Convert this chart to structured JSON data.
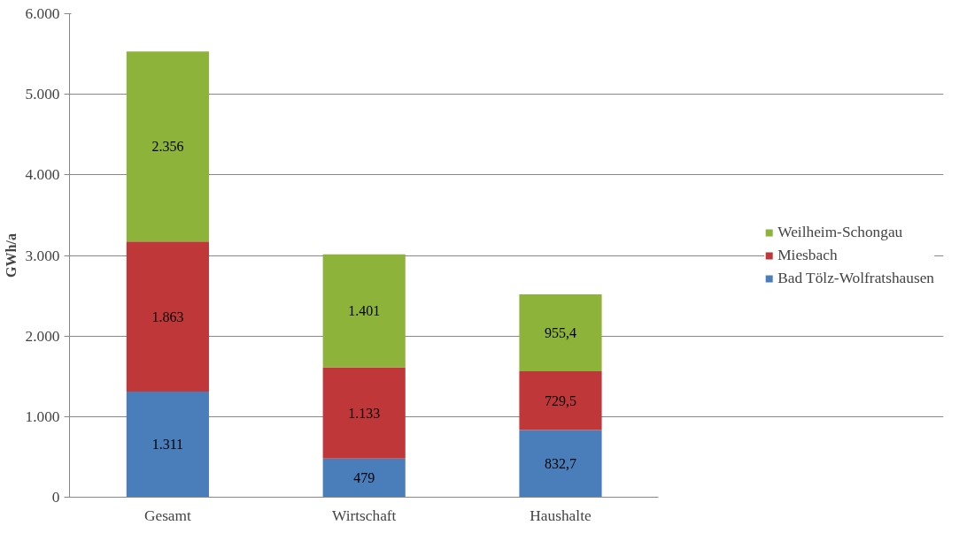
{
  "chart_data": {
    "type": "bar",
    "stacked": true,
    "categories": [
      "Gesamt",
      "Wirtschaft",
      "Haushalte"
    ],
    "ylabel": "GWh/a",
    "ylim": [
      0,
      6000
    ],
    "yticks": [
      {
        "value": 0,
        "label": "0"
      },
      {
        "value": 1000,
        "label": "1.000"
      },
      {
        "value": 2000,
        "label": "2.000"
      },
      {
        "value": 3000,
        "label": "3.000"
      },
      {
        "value": 4000,
        "label": "4.000"
      },
      {
        "value": 5000,
        "label": "5.000"
      },
      {
        "value": 6000,
        "label": "6.000"
      }
    ],
    "grid": "y",
    "legend": "right",
    "series": [
      {
        "name": "Bad Tölz-Wolfratshausen",
        "color": "#4a7ebb",
        "values": [
          1311,
          479,
          832.7
        ],
        "value_labels": [
          "1.311",
          "479",
          "832,7"
        ]
      },
      {
        "name": "Miesbach",
        "color": "#c0373a",
        "values": [
          1863,
          1133,
          729.5
        ],
        "value_labels": [
          "1.863",
          "1.133",
          "729,5"
        ]
      },
      {
        "name": "Weilheim-Schongau",
        "color": "#8db33a",
        "values": [
          2356,
          1401,
          955.4
        ],
        "value_labels": [
          "2.356",
          "1.401",
          "955,4"
        ]
      }
    ]
  }
}
